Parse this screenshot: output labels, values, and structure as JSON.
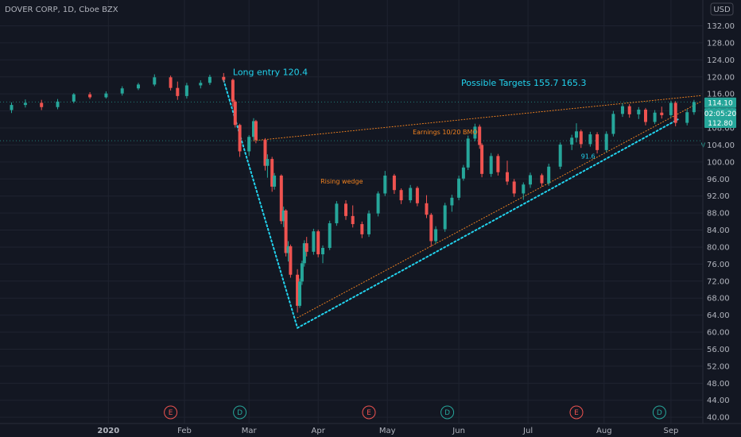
{
  "chart_data": {
    "type": "candlestick",
    "title": "DOVER CORP, 1D, Cboe BZX",
    "currency_label": "USD",
    "y_ticks": [
      "132.00",
      "128.00",
      "124.00",
      "120.00",
      "116.00",
      "112.00",
      "108.00",
      "104.00",
      "100.00",
      "96.00",
      "92.00",
      "88.00",
      "84.00",
      "80.00",
      "76.00",
      "72.00",
      "68.00",
      "64.00",
      "60.00",
      "56.00",
      "52.00",
      "48.00",
      "44.00",
      "40.00"
    ],
    "ylim": [
      39.5,
      135.0
    ],
    "x_labels": [
      {
        "label": "2020",
        "date": "2020-01-01"
      },
      {
        "label": "Feb",
        "date": "2020-02-03"
      },
      {
        "label": "Mar",
        "date": "2020-03-02"
      },
      {
        "label": "Apr",
        "date": "2020-04-01"
      },
      {
        "label": "May",
        "date": "2020-05-01"
      },
      {
        "label": "Jun",
        "date": "2020-06-01"
      },
      {
        "label": "Jul",
        "date": "2020-07-01"
      },
      {
        "label": "Aug",
        "date": "2020-08-03"
      },
      {
        "label": "Sep",
        "date": "2020-09-01"
      }
    ],
    "candles": [
      {
        "date": "2019-11-20",
        "open": 112.2,
        "high": 114.0,
        "low": 111.5,
        "close": 113.4
      },
      {
        "date": "2019-11-26",
        "open": 113.4,
        "high": 114.7,
        "low": 112.8,
        "close": 113.9
      },
      {
        "date": "2019-12-03",
        "open": 113.9,
        "high": 114.6,
        "low": 112.2,
        "close": 112.9
      },
      {
        "date": "2019-12-10",
        "open": 112.9,
        "high": 114.8,
        "low": 112.4,
        "close": 114.2
      },
      {
        "date": "2019-12-17",
        "open": 114.2,
        "high": 116.2,
        "low": 113.8,
        "close": 115.9
      },
      {
        "date": "2019-12-24",
        "open": 115.9,
        "high": 116.4,
        "low": 114.8,
        "close": 115.2
      },
      {
        "date": "2019-12-31",
        "open": 115.2,
        "high": 116.6,
        "low": 114.9,
        "close": 116.1
      },
      {
        "date": "2020-01-07",
        "open": 116.1,
        "high": 117.8,
        "low": 115.6,
        "close": 117.3
      },
      {
        "date": "2020-01-14",
        "open": 117.3,
        "high": 118.6,
        "low": 116.9,
        "close": 118.2
      },
      {
        "date": "2020-01-21",
        "open": 118.2,
        "high": 120.6,
        "low": 117.8,
        "close": 119.9
      },
      {
        "date": "2020-01-28",
        "open": 119.9,
        "high": 120.3,
        "low": 116.8,
        "close": 117.4
      },
      {
        "date": "2020-01-31",
        "open": 117.4,
        "high": 118.9,
        "low": 114.6,
        "close": 115.5
      },
      {
        "date": "2020-02-04",
        "open": 115.5,
        "high": 118.6,
        "low": 114.9,
        "close": 118.0
      },
      {
        "date": "2020-02-10",
        "open": 118.0,
        "high": 119.2,
        "low": 117.3,
        "close": 118.6
      },
      {
        "date": "2020-02-14",
        "open": 118.6,
        "high": 120.5,
        "low": 118.1,
        "close": 120.0
      },
      {
        "date": "2020-02-20",
        "open": 120.0,
        "high": 120.9,
        "low": 118.8,
        "close": 119.3
      },
      {
        "date": "2020-02-24",
        "open": 119.3,
        "high": 119.6,
        "low": 113.0,
        "close": 114.2
      },
      {
        "date": "2020-02-25",
        "open": 114.2,
        "high": 114.6,
        "low": 108.1,
        "close": 108.7
      },
      {
        "date": "2020-02-27",
        "open": 108.7,
        "high": 109.0,
        "low": 101.2,
        "close": 102.5
      },
      {
        "date": "2020-03-02",
        "open": 102.5,
        "high": 106.3,
        "low": 101.4,
        "close": 105.9
      },
      {
        "date": "2020-03-04",
        "open": 105.9,
        "high": 110.3,
        "low": 105.1,
        "close": 109.6
      },
      {
        "date": "2020-03-05",
        "open": 109.6,
        "high": 109.9,
        "low": 104.4,
        "close": 105.2
      },
      {
        "date": "2020-03-09",
        "open": 105.2,
        "high": 105.6,
        "low": 98.0,
        "close": 99.1
      },
      {
        "date": "2020-03-10",
        "open": 99.1,
        "high": 101.8,
        "low": 96.3,
        "close": 100.7
      },
      {
        "date": "2020-03-12",
        "open": 100.7,
        "high": 101.2,
        "low": 93.0,
        "close": 94.2
      },
      {
        "date": "2020-03-13",
        "open": 94.2,
        "high": 97.4,
        "low": 93.5,
        "close": 96.8
      },
      {
        "date": "2020-03-16",
        "open": 96.8,
        "high": 97.1,
        "low": 85.4,
        "close": 86.1
      },
      {
        "date": "2020-03-17",
        "open": 86.1,
        "high": 89.5,
        "low": 84.7,
        "close": 88.6
      },
      {
        "date": "2020-03-18",
        "open": 88.6,
        "high": 88.9,
        "low": 77.8,
        "close": 78.6
      },
      {
        "date": "2020-03-19",
        "open": 78.6,
        "high": 81.4,
        "low": 76.6,
        "close": 80.2
      },
      {
        "date": "2020-03-20",
        "open": 80.2,
        "high": 80.6,
        "low": 72.8,
        "close": 73.5
      },
      {
        "date": "2020-03-23",
        "open": 73.5,
        "high": 74.8,
        "low": 64.6,
        "close": 66.2
      },
      {
        "date": "2020-03-24",
        "open": 66.2,
        "high": 72.6,
        "low": 65.7,
        "close": 71.9
      },
      {
        "date": "2020-03-25",
        "open": 71.9,
        "high": 76.8,
        "low": 71.1,
        "close": 76.2
      },
      {
        "date": "2020-03-26",
        "open": 76.2,
        "high": 81.6,
        "low": 75.4,
        "close": 80.9
      },
      {
        "date": "2020-03-27",
        "open": 80.9,
        "high": 82.4,
        "low": 77.8,
        "close": 78.9
      },
      {
        "date": "2020-03-30",
        "open": 78.9,
        "high": 84.3,
        "low": 78.2,
        "close": 83.7
      },
      {
        "date": "2020-04-01",
        "open": 83.7,
        "high": 84.1,
        "low": 77.6,
        "close": 78.3
      },
      {
        "date": "2020-04-03",
        "open": 78.3,
        "high": 80.4,
        "low": 76.2,
        "close": 79.8
      },
      {
        "date": "2020-04-06",
        "open": 79.8,
        "high": 86.2,
        "low": 79.3,
        "close": 85.6
      },
      {
        "date": "2020-04-09",
        "open": 85.6,
        "high": 90.8,
        "low": 85.0,
        "close": 90.2
      },
      {
        "date": "2020-04-13",
        "open": 90.2,
        "high": 91.0,
        "low": 86.4,
        "close": 87.3
      },
      {
        "date": "2020-04-16",
        "open": 87.3,
        "high": 89.8,
        "low": 84.6,
        "close": 85.4
      },
      {
        "date": "2020-04-20",
        "open": 85.4,
        "high": 86.0,
        "low": 82.1,
        "close": 83.0
      },
      {
        "date": "2020-04-23",
        "open": 83.0,
        "high": 88.6,
        "low": 82.4,
        "close": 87.9
      },
      {
        "date": "2020-04-27",
        "open": 87.9,
        "high": 93.1,
        "low": 87.2,
        "close": 92.6
      },
      {
        "date": "2020-04-30",
        "open": 92.6,
        "high": 97.9,
        "low": 92.0,
        "close": 96.8
      },
      {
        "date": "2020-05-04",
        "open": 96.8,
        "high": 97.2,
        "low": 92.5,
        "close": 93.4
      },
      {
        "date": "2020-05-07",
        "open": 93.4,
        "high": 93.8,
        "low": 90.1,
        "close": 91.0
      },
      {
        "date": "2020-05-11",
        "open": 91.0,
        "high": 94.6,
        "low": 90.4,
        "close": 93.9
      },
      {
        "date": "2020-05-14",
        "open": 93.9,
        "high": 94.3,
        "low": 89.6,
        "close": 90.3
      },
      {
        "date": "2020-05-18",
        "open": 90.3,
        "high": 92.2,
        "low": 86.8,
        "close": 87.6
      },
      {
        "date": "2020-05-20",
        "open": 87.6,
        "high": 88.0,
        "low": 80.1,
        "close": 81.4
      },
      {
        "date": "2020-05-22",
        "open": 81.4,
        "high": 84.9,
        "low": 80.8,
        "close": 84.2
      },
      {
        "date": "2020-05-26",
        "open": 84.2,
        "high": 90.4,
        "low": 83.6,
        "close": 89.8
      },
      {
        "date": "2020-05-29",
        "open": 89.8,
        "high": 92.3,
        "low": 88.3,
        "close": 91.6
      },
      {
        "date": "2020-06-01",
        "open": 91.6,
        "high": 96.8,
        "low": 91.0,
        "close": 96.1
      },
      {
        "date": "2020-06-03",
        "open": 96.1,
        "high": 99.3,
        "low": 95.6,
        "close": 98.7
      },
      {
        "date": "2020-06-05",
        "open": 98.7,
        "high": 106.2,
        "low": 98.1,
        "close": 105.5
      },
      {
        "date": "2020-06-08",
        "open": 105.5,
        "high": 109.0,
        "low": 104.9,
        "close": 108.3
      },
      {
        "date": "2020-06-10",
        "open": 108.3,
        "high": 108.8,
        "low": 103.1,
        "close": 104.0
      },
      {
        "date": "2020-06-11",
        "open": 104.0,
        "high": 104.4,
        "low": 96.4,
        "close": 97.2
      },
      {
        "date": "2020-06-15",
        "open": 97.2,
        "high": 102.1,
        "low": 96.5,
        "close": 101.4
      },
      {
        "date": "2020-06-18",
        "open": 101.4,
        "high": 101.9,
        "low": 96.8,
        "close": 97.6
      },
      {
        "date": "2020-06-22",
        "open": 97.6,
        "high": 100.3,
        "low": 94.6,
        "close": 95.4
      },
      {
        "date": "2020-06-25",
        "open": 95.4,
        "high": 96.0,
        "low": 91.8,
        "close": 92.6
      },
      {
        "date": "2020-06-29",
        "open": 92.6,
        "high": 95.2,
        "low": 91.1,
        "close": 94.7
      },
      {
        "date": "2020-07-02",
        "open": 94.7,
        "high": 97.5,
        "low": 93.9,
        "close": 96.9
      },
      {
        "date": "2020-07-07",
        "open": 96.9,
        "high": 97.3,
        "low": 94.2,
        "close": 95.0
      },
      {
        "date": "2020-07-10",
        "open": 95.0,
        "high": 99.6,
        "low": 94.4,
        "close": 98.9
      },
      {
        "date": "2020-07-15",
        "open": 98.9,
        "high": 104.6,
        "low": 98.3,
        "close": 104.1
      },
      {
        "date": "2020-07-20",
        "open": 104.1,
        "high": 106.4,
        "low": 102.8,
        "close": 105.7
      },
      {
        "date": "2020-07-22",
        "open": 105.7,
        "high": 109.1,
        "low": 104.6,
        "close": 107.2
      },
      {
        "date": "2020-07-24",
        "open": 107.2,
        "high": 107.6,
        "low": 103.3,
        "close": 104.2
      },
      {
        "date": "2020-07-28",
        "open": 104.2,
        "high": 107.1,
        "low": 103.6,
        "close": 106.5
      },
      {
        "date": "2020-07-31",
        "open": 106.5,
        "high": 107.0,
        "low": 102.0,
        "close": 102.8
      },
      {
        "date": "2020-08-04",
        "open": 102.8,
        "high": 107.2,
        "low": 102.3,
        "close": 106.6
      },
      {
        "date": "2020-08-07",
        "open": 106.6,
        "high": 112.0,
        "low": 106.0,
        "close": 111.3
      },
      {
        "date": "2020-08-11",
        "open": 111.3,
        "high": 113.8,
        "low": 110.6,
        "close": 113.1
      },
      {
        "date": "2020-08-14",
        "open": 113.1,
        "high": 113.6,
        "low": 110.4,
        "close": 111.2
      },
      {
        "date": "2020-08-18",
        "open": 111.2,
        "high": 112.9,
        "low": 110.1,
        "close": 112.3
      },
      {
        "date": "2020-08-21",
        "open": 112.3,
        "high": 112.7,
        "low": 108.6,
        "close": 109.4
      },
      {
        "date": "2020-08-25",
        "open": 109.4,
        "high": 112.2,
        "low": 108.9,
        "close": 111.6
      },
      {
        "date": "2020-08-28",
        "open": 111.6,
        "high": 113.0,
        "low": 110.2,
        "close": 111.0
      },
      {
        "date": "2020-09-01",
        "open": 111.0,
        "high": 114.4,
        "low": 110.4,
        "close": 113.9
      },
      {
        "date": "2020-09-03",
        "open": 113.9,
        "high": 114.3,
        "low": 108.4,
        "close": 109.2
      },
      {
        "date": "2020-09-08",
        "open": 109.2,
        "high": 112.4,
        "low": 108.6,
        "close": 111.7
      },
      {
        "date": "2020-09-11",
        "open": 111.7,
        "high": 114.6,
        "low": 111.1,
        "close": 114.1
      }
    ],
    "horizontal_levels": [
      {
        "price": 114.1,
        "style": "dotted",
        "color": "#26a69a"
      },
      {
        "price": 105.0,
        "style": "dotted",
        "color": "#26a69a"
      }
    ],
    "trend_lines": [
      {
        "from": {
          "date": "2020-02-20",
          "price": 119.2
        },
        "to": {
          "date": "2020-03-23",
          "price": 61.0
        },
        "color": "#22d3ee",
        "style": "dotted"
      },
      {
        "from": {
          "date": "2020-03-23",
          "price": 61.0
        },
        "to": {
          "date": "2020-09-04",
          "price": 110.0
        },
        "color": "#22d3ee",
        "style": "dotted"
      },
      {
        "from": {
          "date": "2020-03-23",
          "price": 63.4
        },
        "to": {
          "date": "2020-09-14",
          "price": 114.2
        },
        "color": "#f4831f",
        "style": "dotted"
      },
      {
        "from": {
          "date": "2020-03-04",
          "price": 105.0
        },
        "to": {
          "date": "2020-09-14",
          "price": 115.6
        },
        "color": "#f4831f",
        "style": "dotted"
      }
    ],
    "annotations": [
      {
        "text": "Long entry 120.4",
        "date": "2020-02-24",
        "price": 120.4,
        "color": "#22d3ee",
        "size": "large"
      },
      {
        "text": "Possible Targets  155.7     165.3",
        "date": "2020-06-02",
        "price": 117.9,
        "color": "#22d3ee",
        "size": "large"
      },
      {
        "text": "Earnings 10/20 BMO",
        "date": "2020-05-12",
        "price": 106.5,
        "color": "#f4831f",
        "size": "small"
      },
      {
        "text": "Rising wedge",
        "date": "2020-04-02",
        "price": 94.9,
        "color": "#f4831f",
        "size": "small"
      },
      {
        "text": "91.6",
        "date": "2020-07-24",
        "price": 100.8,
        "color": "#22d3ee",
        "size": "small"
      },
      {
        "text": "V",
        "date": "2020-09-14",
        "price": 103.4,
        "color": "#26a69a",
        "size": "small"
      }
    ],
    "event_markers": [
      {
        "label": "E",
        "date": "2020-01-28",
        "color": "#ef5350"
      },
      {
        "label": "D",
        "date": "2020-02-27",
        "color": "#26a69a"
      },
      {
        "label": "E",
        "date": "2020-04-23",
        "color": "#ef5350"
      },
      {
        "label": "D",
        "date": "2020-05-27",
        "color": "#26a69a"
      },
      {
        "label": "E",
        "date": "2020-07-22",
        "color": "#ef5350"
      },
      {
        "label": "D",
        "date": "2020-08-27",
        "color": "#26a69a"
      }
    ],
    "price_tags": [
      {
        "text": "114.10",
        "color": "#26a69a"
      },
      {
        "text": "02:05:20",
        "color": "#26a69a"
      },
      {
        "text": "112.80",
        "color": "#26a69a"
      }
    ],
    "colors": {
      "up": "#26a69a",
      "down": "#ef5350",
      "background": "#131722",
      "grid": "#1f2330",
      "axis_text": "#b2b5be"
    }
  }
}
